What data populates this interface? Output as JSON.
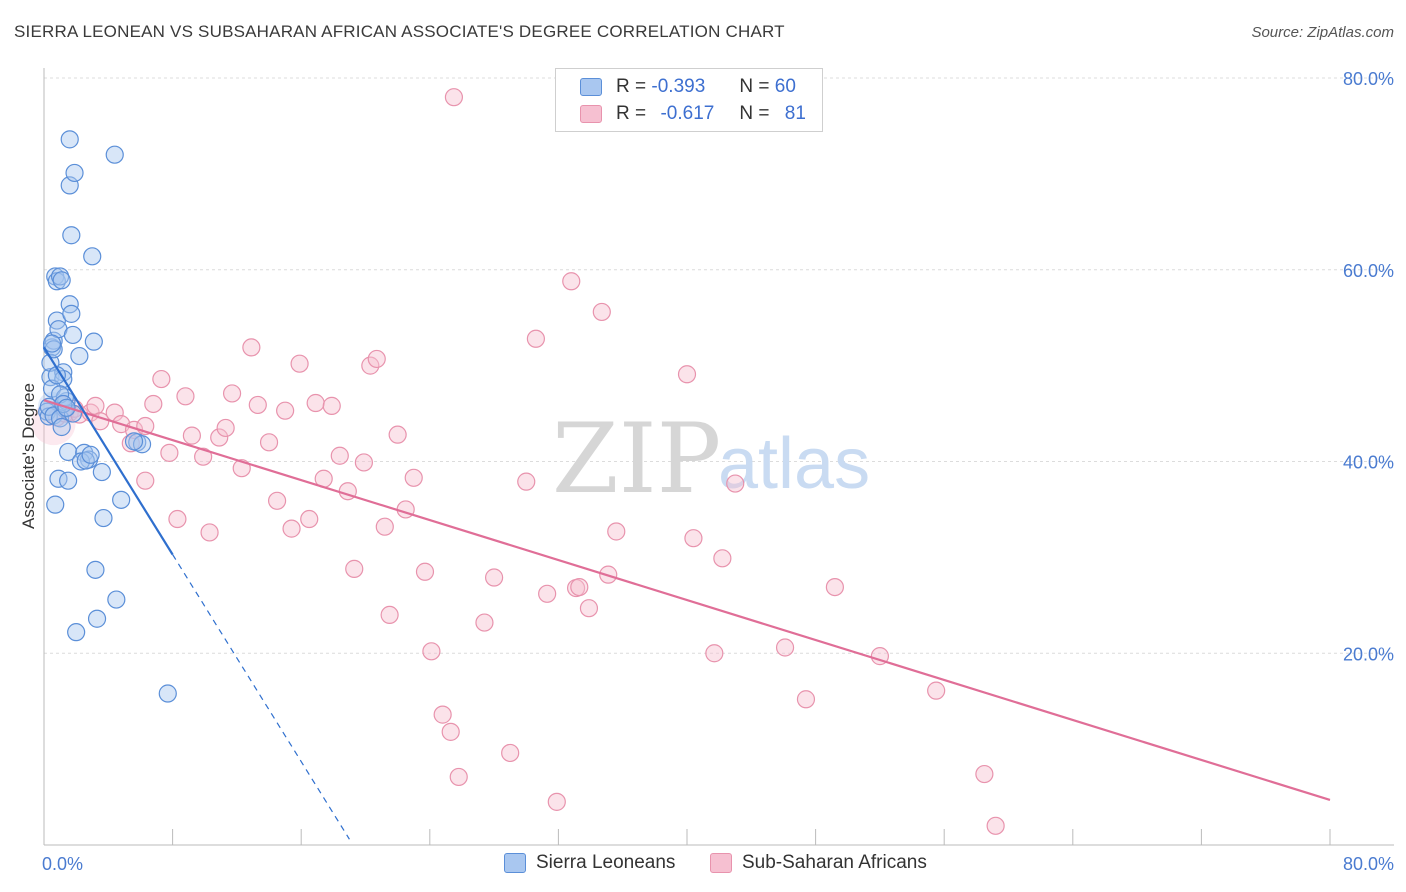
{
  "header": {
    "title": "SIERRA LEONEAN VS SUBSAHARAN AFRICAN ASSOCIATE'S DEGREE CORRELATION CHART",
    "source": "Source: ZipAtlas.com"
  },
  "legend": {
    "series1": {
      "r_label": "R =",
      "r_value": "-0.393",
      "n_label": "N =",
      "n_value": "60"
    },
    "series2": {
      "r_label": "R =",
      "r_value": "-0.617",
      "n_label": "N =",
      "n_value": "81"
    }
  },
  "watermark": {
    "zip": "ZIP",
    "atlas": "atlas"
  },
  "colors": {
    "blue_fill": "#a9c7f0",
    "blue_stroke": "#5b8fd8",
    "blue_line": "#2f6fce",
    "pink_fill": "#f6c0d1",
    "pink_stroke": "#e893ad",
    "pink_line": "#e06e97",
    "grid": "#dcdcdc",
    "axis_text": "#4a7bd0"
  },
  "chart_data": {
    "type": "scatter",
    "title": "SIERRA LEONEAN VS SUBSAHARAN AFRICAN ASSOCIATE'S DEGREE CORRELATION CHART",
    "xlabel": "",
    "ylabel": "Associate's Degree",
    "xlim": [
      0,
      80
    ],
    "ylim": [
      0,
      80
    ],
    "x_tick_labels": [
      "0.0%",
      "80.0%"
    ],
    "y_ticks": [
      20,
      40,
      60,
      80
    ],
    "y_tick_labels": [
      "20.0%",
      "40.0%",
      "60.0%",
      "80.0%"
    ],
    "legend_position": "bottom",
    "series": [
      {
        "name": "Sierra Leoneans",
        "color": "blue",
        "r": -0.393,
        "n": 60,
        "trend": {
          "x0": 0.0,
          "y0": 51.9,
          "x1": 8.0,
          "y1": 30.3,
          "dashed_to_x": 19.0
        },
        "points": [
          [
            0.2,
            45.2
          ],
          [
            0.3,
            44.7
          ],
          [
            0.4,
            48.8
          ],
          [
            0.5,
            51.9
          ],
          [
            0.6,
            52.6
          ],
          [
            0.7,
            59.3
          ],
          [
            0.8,
            58.8
          ],
          [
            0.8,
            54.7
          ],
          [
            0.9,
            53.8
          ],
          [
            1.0,
            59.3
          ],
          [
            1.1,
            58.9
          ],
          [
            1.2,
            49.3
          ],
          [
            1.2,
            48.6
          ],
          [
            1.3,
            45.5
          ],
          [
            1.4,
            46.3
          ],
          [
            1.5,
            41.0
          ],
          [
            1.6,
            56.4
          ],
          [
            1.7,
            55.4
          ],
          [
            1.8,
            53.2
          ],
          [
            1.7,
            63.6
          ],
          [
            1.6,
            68.8
          ],
          [
            1.9,
            70.1
          ],
          [
            1.6,
            73.6
          ],
          [
            2.2,
            51.0
          ],
          [
            2.5,
            40.9
          ],
          [
            2.8,
            40.2
          ],
          [
            3.0,
            61.4
          ],
          [
            3.1,
            52.5
          ],
          [
            3.3,
            23.6
          ],
          [
            3.2,
            28.7
          ],
          [
            3.6,
            38.9
          ],
          [
            3.7,
            34.1
          ],
          [
            4.4,
            72.0
          ],
          [
            4.5,
            25.6
          ],
          [
            4.8,
            36.0
          ],
          [
            5.8,
            42.0
          ],
          [
            6.1,
            41.8
          ],
          [
            7.7,
            15.8
          ],
          [
            0.3,
            45.7
          ],
          [
            0.5,
            47.6
          ],
          [
            0.6,
            44.8
          ],
          [
            0.7,
            35.5
          ],
          [
            0.9,
            38.2
          ],
          [
            1.0,
            44.5
          ],
          [
            1.1,
            43.6
          ],
          [
            1.3,
            46.7
          ],
          [
            1.5,
            38.0
          ],
          [
            1.8,
            45.0
          ],
          [
            2.0,
            22.2
          ],
          [
            2.3,
            40.0
          ],
          [
            2.6,
            40.1
          ],
          [
            2.9,
            40.7
          ],
          [
            0.4,
            50.3
          ],
          [
            0.6,
            51.7
          ],
          [
            0.8,
            49.0
          ],
          [
            1.0,
            47.0
          ],
          [
            1.2,
            46.0
          ],
          [
            1.4,
            45.6
          ],
          [
            5.6,
            42.1
          ],
          [
            0.5,
            52.3
          ]
        ]
      },
      {
        "name": "Sub-Saharan Africans",
        "color": "pink",
        "r": -0.617,
        "n": 81,
        "trend": {
          "x0": 0.0,
          "y0": 46.4,
          "x1": 80.0,
          "y1": 4.7
        },
        "points": [
          [
            0.8,
            44.6
          ],
          [
            1.1,
            45.9
          ],
          [
            1.3,
            45.0
          ],
          [
            1.6,
            45.1
          ],
          [
            1.9,
            45.5
          ],
          [
            2.2,
            44.9
          ],
          [
            2.9,
            45.1
          ],
          [
            3.2,
            45.8
          ],
          [
            3.5,
            44.2
          ],
          [
            4.4,
            45.1
          ],
          [
            4.8,
            43.9
          ],
          [
            5.4,
            41.9
          ],
          [
            5.6,
            43.3
          ],
          [
            6.3,
            43.7
          ],
          [
            6.3,
            38.0
          ],
          [
            6.8,
            46.0
          ],
          [
            7.3,
            48.6
          ],
          [
            7.8,
            40.9
          ],
          [
            8.3,
            34.0
          ],
          [
            8.8,
            46.8
          ],
          [
            9.2,
            42.7
          ],
          [
            9.9,
            40.5
          ],
          [
            10.3,
            32.6
          ],
          [
            10.9,
            42.5
          ],
          [
            11.3,
            43.5
          ],
          [
            11.7,
            47.1
          ],
          [
            12.3,
            39.3
          ],
          [
            12.9,
            51.9
          ],
          [
            13.3,
            45.9
          ],
          [
            14.0,
            42.0
          ],
          [
            14.5,
            35.9
          ],
          [
            15.0,
            45.3
          ],
          [
            15.4,
            33.0
          ],
          [
            15.9,
            50.2
          ],
          [
            16.5,
            34.0
          ],
          [
            16.9,
            46.1
          ],
          [
            17.4,
            38.2
          ],
          [
            17.9,
            45.8
          ],
          [
            18.4,
            40.6
          ],
          [
            18.9,
            36.9
          ],
          [
            19.3,
            28.8
          ],
          [
            19.9,
            39.9
          ],
          [
            20.3,
            50.0
          ],
          [
            20.7,
            50.7
          ],
          [
            21.2,
            33.2
          ],
          [
            21.5,
            24.0
          ],
          [
            22.0,
            42.8
          ],
          [
            22.5,
            35.0
          ],
          [
            23.0,
            38.3
          ],
          [
            23.7,
            28.5
          ],
          [
            24.1,
            20.2
          ],
          [
            24.8,
            13.6
          ],
          [
            25.3,
            11.8
          ],
          [
            25.8,
            7.1
          ],
          [
            25.5,
            78.0
          ],
          [
            27.4,
            23.2
          ],
          [
            28.0,
            27.9
          ],
          [
            29.0,
            9.6
          ],
          [
            30.0,
            37.9
          ],
          [
            30.6,
            52.8
          ],
          [
            31.3,
            26.2
          ],
          [
            31.9,
            4.5
          ],
          [
            32.8,
            58.8
          ],
          [
            33.1,
            26.8
          ],
          [
            33.3,
            26.9
          ],
          [
            33.9,
            24.7
          ],
          [
            34.7,
            55.6
          ],
          [
            35.1,
            28.2
          ],
          [
            35.6,
            32.7
          ],
          [
            40.0,
            49.1
          ],
          [
            40.4,
            32.0
          ],
          [
            41.7,
            20.0
          ],
          [
            42.2,
            29.9
          ],
          [
            43.0,
            37.7
          ],
          [
            46.1,
            20.6
          ],
          [
            47.4,
            15.2
          ],
          [
            49.2,
            26.9
          ],
          [
            52.0,
            19.7
          ],
          [
            55.5,
            16.1
          ],
          [
            58.5,
            7.4
          ],
          [
            59.2,
            2.0
          ]
        ]
      }
    ]
  },
  "bottom_legend": {
    "item1": "Sierra Leoneans",
    "item2": "Sub-Saharan Africans"
  }
}
